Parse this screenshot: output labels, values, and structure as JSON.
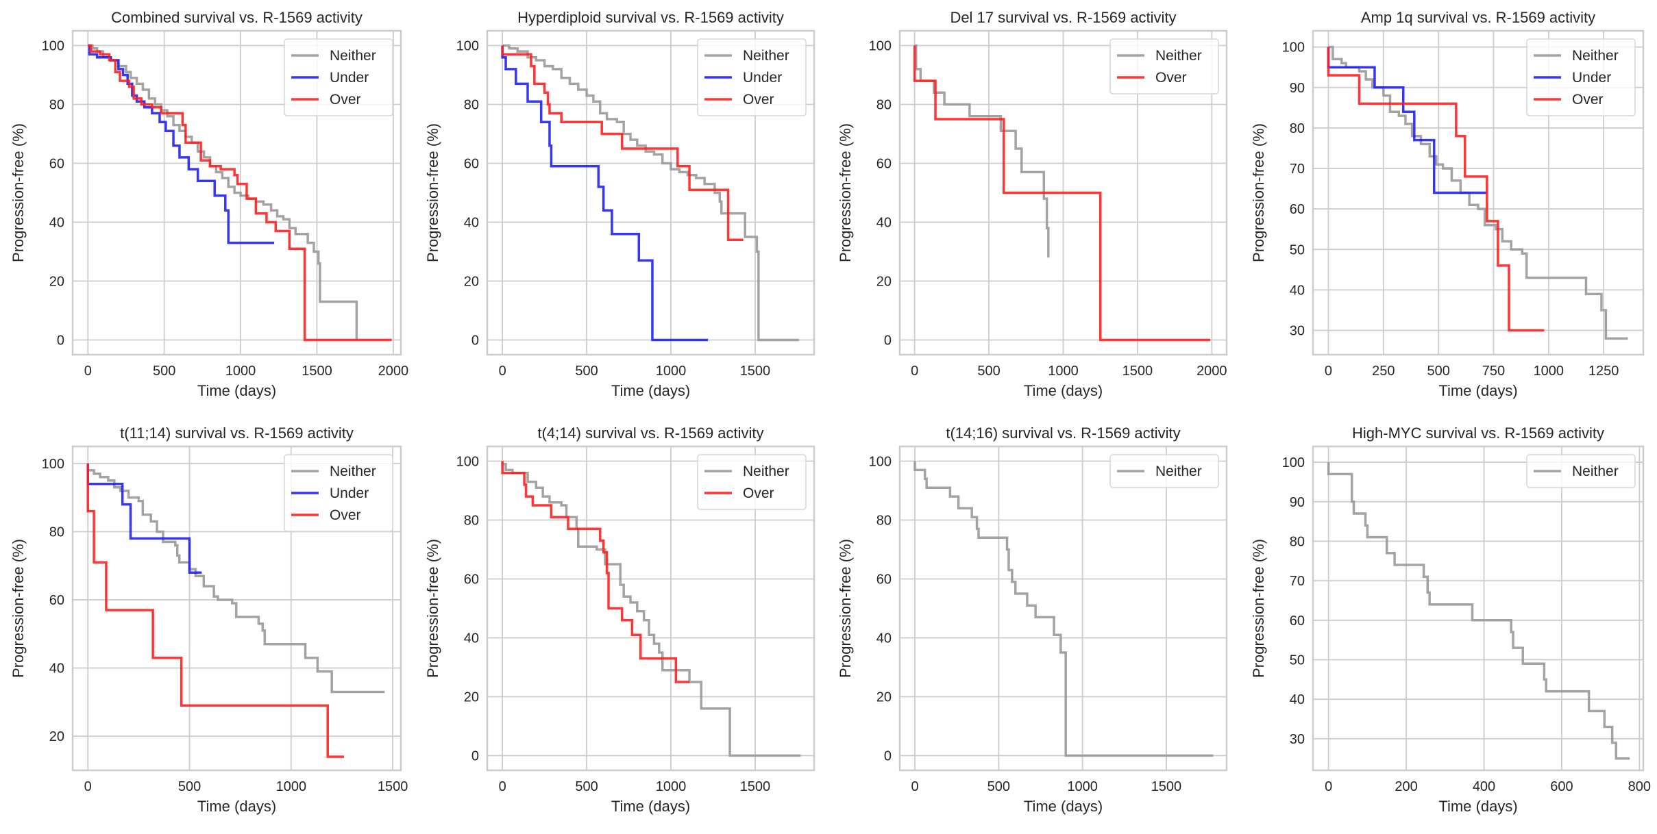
{
  "figure": {
    "series_colors": {
      "Neither": "#999999",
      "Under": "#2020f5",
      "Over": "#ff2020"
    }
  },
  "chart_data": [
    {
      "type": "line",
      "title": "Combined survival vs. R-1569 activity",
      "xlabel": "Time (days)",
      "ylabel": "Progression-free (%)",
      "xlim": [
        -100,
        2050
      ],
      "ylim": [
        -5,
        105
      ],
      "xticks": [
        0,
        500,
        1000,
        1500,
        2000
      ],
      "yticks": [
        0,
        20,
        40,
        60,
        80,
        100
      ],
      "grid": true,
      "legend": "top-right",
      "series": [
        {
          "name": "Neither",
          "x": [
            0,
            30,
            60,
            100,
            150,
            200,
            250,
            280,
            320,
            360,
            400,
            440,
            480,
            520,
            560,
            600,
            640,
            680,
            720,
            760,
            800,
            840,
            880,
            920,
            960,
            1000,
            1050,
            1100,
            1150,
            1200,
            1240,
            1280,
            1320,
            1360,
            1400,
            1440,
            1480,
            1510,
            1520,
            1760
          ],
          "y": [
            100,
            99,
            98,
            96,
            95,
            93,
            91,
            89,
            87,
            85,
            82,
            80,
            78,
            76,
            73,
            71,
            69,
            67,
            64,
            62,
            59,
            57,
            55,
            52,
            50,
            49,
            48,
            47,
            46,
            44,
            42,
            41,
            38,
            36,
            36,
            33,
            30,
            26,
            13,
            0
          ]
        },
        {
          "name": "Under",
          "x": [
            0,
            10,
            60,
            150,
            200,
            230,
            260,
            290,
            320,
            370,
            420,
            470,
            510,
            560,
            600,
            660,
            720,
            830,
            900,
            920,
            1220
          ],
          "y": [
            100,
            97,
            96,
            95,
            92,
            90,
            87,
            83,
            81,
            79,
            77,
            74,
            71,
            66,
            62,
            58,
            54,
            49,
            44,
            33,
            33
          ]
        },
        {
          "name": "Over",
          "x": [
            0,
            20,
            80,
            140,
            180,
            210,
            230,
            270,
            300,
            350,
            420,
            480,
            580,
            620,
            640,
            700,
            740,
            800,
            870,
            960,
            980,
            1040,
            1100,
            1170,
            1230,
            1320,
            1420,
            1990
          ],
          "y": [
            100,
            98,
            97,
            95,
            91,
            88,
            88,
            86,
            82,
            80,
            79,
            77,
            77,
            73,
            67,
            67,
            61,
            59,
            58,
            56,
            53,
            48,
            43,
            40,
            37,
            31,
            0,
            0
          ]
        }
      ]
    },
    {
      "type": "line",
      "title": "Hyperdiploid survival vs. R-1569 activity",
      "xlabel": "Time (days)",
      "ylabel": "Progression-free (%)",
      "xlim": [
        -90,
        1850
      ],
      "ylim": [
        -5,
        105
      ],
      "xticks": [
        0,
        500,
        1000,
        1500
      ],
      "yticks": [
        0,
        20,
        40,
        60,
        80,
        100
      ],
      "grid": true,
      "legend": "top-right",
      "series": [
        {
          "name": "Neither",
          "x": [
            0,
            40,
            90,
            150,
            200,
            250,
            300,
            350,
            400,
            450,
            500,
            540,
            580,
            620,
            680,
            720,
            760,
            800,
            850,
            900,
            950,
            1000,
            1050,
            1100,
            1150,
            1200,
            1260,
            1290,
            1300,
            1420,
            1440,
            1500,
            1510,
            1520,
            1760
          ],
          "y": [
            100,
            99,
            98,
            96,
            95,
            93,
            92,
            89,
            87,
            85,
            83,
            81,
            77,
            75,
            74,
            70,
            68,
            66,
            64,
            63,
            60,
            58,
            57,
            56,
            55,
            53,
            50,
            47,
            43,
            43,
            35,
            35,
            30,
            0,
            0
          ]
        },
        {
          "name": "Under",
          "x": [
            0,
            20,
            80,
            150,
            230,
            280,
            290,
            570,
            600,
            650,
            810,
            890,
            1220
          ],
          "y": [
            96,
            92,
            87,
            81,
            74,
            66,
            59,
            52,
            44,
            36,
            27,
            0,
            0
          ]
        },
        {
          "name": "Over",
          "x": [
            0,
            150,
            170,
            190,
            250,
            270,
            280,
            350,
            590,
            710,
            1040,
            1110,
            1340,
            1430
          ],
          "y": [
            97,
            97,
            93,
            87,
            84,
            80,
            77,
            74,
            70,
            65,
            59,
            51,
            34,
            34
          ]
        }
      ]
    },
    {
      "type": "line",
      "title": "Del 17 survival vs. R-1569 activity",
      "xlabel": "Time (days)",
      "ylabel": "Progression-free (%)",
      "xlim": [
        -100,
        2100
      ],
      "ylim": [
        -5,
        105
      ],
      "xticks": [
        0,
        500,
        1000,
        1500,
        2000
      ],
      "yticks": [
        0,
        20,
        40,
        60,
        80,
        100
      ],
      "grid": true,
      "legend": "top-right",
      "series": [
        {
          "name": "Neither",
          "x": [
            0,
            10,
            40,
            130,
            200,
            370,
            580,
            680,
            720,
            870,
            890,
            900
          ],
          "y": [
            100,
            92,
            88,
            84,
            80,
            76,
            71,
            65,
            57,
            48,
            38,
            28
          ]
        },
        {
          "name": "Over",
          "x": [
            0,
            140,
            600,
            1250,
            1990
          ],
          "y": [
            88,
            75,
            50,
            0,
            0
          ]
        }
      ]
    },
    {
      "type": "line",
      "title": "Amp 1q survival vs. R-1569 activity",
      "xlabel": "Time (days)",
      "ylabel": "Progression-free (%)",
      "xlim": [
        -70,
        1430
      ],
      "ylim": [
        24,
        104
      ],
      "xticks": [
        0,
        250,
        500,
        750,
        1000,
        1250
      ],
      "yticks": [
        30,
        40,
        50,
        60,
        70,
        80,
        90,
        100
      ],
      "grid": true,
      "legend": "top-right",
      "series": [
        {
          "name": "Neither",
          "x": [
            0,
            20,
            60,
            80,
            140,
            170,
            200,
            250,
            280,
            320,
            350,
            380,
            420,
            460,
            490,
            520,
            560,
            600,
            640,
            680,
            710,
            730,
            760,
            790,
            830,
            880,
            900,
            1170,
            1240,
            1260,
            1360
          ],
          "y": [
            100,
            97,
            96,
            95,
            94,
            92,
            90,
            88,
            84,
            83,
            81,
            78,
            76,
            73,
            71,
            70,
            67,
            64,
            61,
            60,
            56,
            56,
            55,
            52,
            50,
            49,
            43,
            39,
            35,
            28,
            28
          ]
        },
        {
          "name": "Under",
          "x": [
            0,
            210,
            340,
            390,
            480,
            720
          ],
          "y": [
            95,
            90,
            84,
            77,
            64,
            64
          ]
        },
        {
          "name": "Over",
          "x": [
            0,
            140,
            580,
            620,
            720,
            770,
            820,
            980
          ],
          "y": [
            93,
            86,
            78,
            68,
            57,
            46,
            30,
            30
          ]
        }
      ]
    },
    {
      "type": "line",
      "title": "t(11;14) survival vs. R-1569 activity",
      "xlabel": "Time (days)",
      "ylabel": "Progression-free (%)",
      "xlim": [
        -75,
        1540
      ],
      "ylim": [
        10,
        105
      ],
      "xticks": [
        0,
        500,
        1000,
        1500
      ],
      "yticks": [
        20,
        40,
        60,
        80,
        100
      ],
      "grid": true,
      "legend": "top-right",
      "series": [
        {
          "name": "Neither",
          "x": [
            0,
            30,
            60,
            100,
            130,
            160,
            200,
            250,
            270,
            310,
            340,
            370,
            430,
            440,
            450,
            500,
            530,
            570,
            620,
            640,
            710,
            730,
            840,
            860,
            870,
            1070,
            1130,
            1200,
            1460
          ],
          "y": [
            98,
            97,
            96,
            95,
            93,
            92,
            90,
            89,
            85,
            83,
            80,
            77,
            76,
            73,
            71,
            69,
            67,
            64,
            61,
            60,
            59,
            55,
            53,
            51,
            47,
            43,
            39,
            33,
            33
          ]
        },
        {
          "name": "Under",
          "x": [
            0,
            170,
            210,
            500,
            560
          ],
          "y": [
            94,
            88,
            78,
            68,
            68
          ]
        },
        {
          "name": "Over",
          "x": [
            0,
            30,
            90,
            320,
            460,
            1180,
            1260
          ],
          "y": [
            86,
            71,
            57,
            43,
            29,
            14,
            14
          ]
        }
      ]
    },
    {
      "type": "line",
      "title": "t(4;14) survival vs. R-1569 activity",
      "xlabel": "Time (days)",
      "ylabel": "Progression-free (%)",
      "xlim": [
        -90,
        1850
      ],
      "ylim": [
        -5,
        105
      ],
      "xticks": [
        0,
        500,
        1000,
        1500
      ],
      "yticks": [
        0,
        20,
        40,
        60,
        80,
        100
      ],
      "grid": true,
      "legend": "top-right",
      "series": [
        {
          "name": "Neither",
          "x": [
            0,
            20,
            60,
            150,
            200,
            240,
            280,
            350,
            380,
            440,
            450,
            560,
            610,
            700,
            720,
            760,
            800,
            840,
            870,
            900,
            930,
            950,
            1110,
            1180,
            1350,
            1770
          ],
          "y": [
            99,
            97,
            96,
            93,
            91,
            88,
            86,
            85,
            81,
            77,
            71,
            70,
            65,
            58,
            54,
            52,
            49,
            46,
            41,
            38,
            35,
            29,
            25,
            16,
            0,
            0
          ]
        },
        {
          "name": "Over",
          "x": [
            0,
            130,
            140,
            180,
            290,
            390,
            580,
            600,
            620,
            630,
            710,
            770,
            820,
            1030,
            1110
          ],
          "y": [
            96,
            92,
            88,
            85,
            81,
            77,
            73,
            69,
            62,
            50,
            46,
            41,
            33,
            25,
            25
          ]
        }
      ]
    },
    {
      "type": "line",
      "title": "t(14;16) survival vs. R-1569 activity",
      "xlabel": "Time (days)",
      "ylabel": "Progression-free (%)",
      "xlim": [
        -90,
        1860
      ],
      "ylim": [
        -5,
        105
      ],
      "xticks": [
        0,
        500,
        1000,
        1500
      ],
      "yticks": [
        0,
        20,
        40,
        60,
        80,
        100
      ],
      "grid": true,
      "legend": "top-right",
      "series": [
        {
          "name": "Neither",
          "x": [
            0,
            60,
            70,
            210,
            260,
            340,
            370,
            380,
            550,
            560,
            580,
            600,
            670,
            720,
            830,
            870,
            900,
            1780
          ],
          "y": [
            97,
            94,
            91,
            88,
            84,
            81,
            77,
            74,
            70,
            63,
            59,
            55,
            51,
            47,
            41,
            35,
            0,
            0
          ]
        }
      ]
    },
    {
      "type": "line",
      "title": "High-MYC survival vs. R-1569 activity",
      "xlabel": "Time (days)",
      "ylabel": "Progression-free (%)",
      "xlim": [
        -40,
        810
      ],
      "ylim": [
        22,
        104
      ],
      "xticks": [
        0,
        200,
        400,
        600,
        800
      ],
      "yticks": [
        30,
        40,
        50,
        60,
        70,
        80,
        90,
        100
      ],
      "grid": true,
      "legend": "top-right",
      "series": [
        {
          "name": "Neither",
          "x": [
            0,
            60,
            65,
            95,
            100,
            150,
            170,
            245,
            255,
            260,
            370,
            470,
            475,
            500,
            555,
            560,
            670,
            710,
            730,
            740,
            775
          ],
          "y": [
            97,
            90,
            87,
            84,
            81,
            77,
            74,
            71,
            67,
            64,
            60,
            57,
            53,
            49,
            45,
            42,
            37,
            33,
            29,
            25,
            25
          ]
        }
      ]
    }
  ]
}
